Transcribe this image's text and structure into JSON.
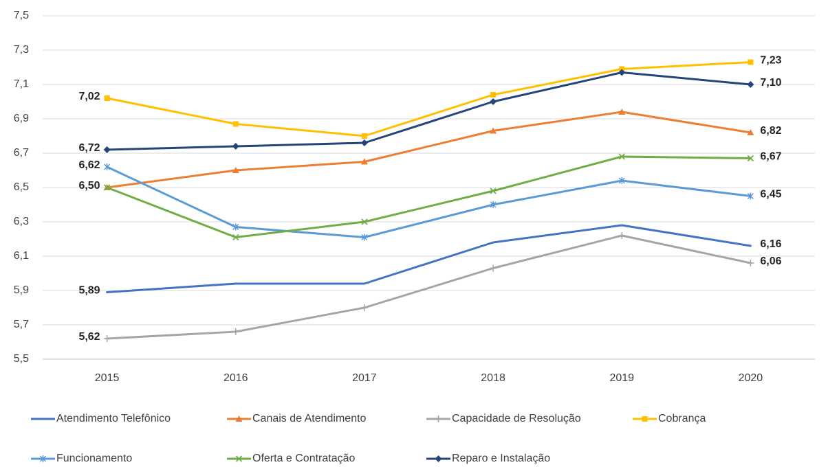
{
  "chart_data": {
    "type": "line",
    "categories": [
      "2015",
      "2016",
      "2017",
      "2018",
      "2019",
      "2020"
    ],
    "ylim": [
      5.5,
      7.5
    ],
    "yticks": [
      {
        "value": 5.5,
        "label": "5,5"
      },
      {
        "value": 5.7,
        "label": "5,7"
      },
      {
        "value": 5.9,
        "label": "5,9"
      },
      {
        "value": 6.1,
        "label": "6,1"
      },
      {
        "value": 6.3,
        "label": "6,3"
      },
      {
        "value": 6.5,
        "label": "6,5"
      },
      {
        "value": 6.7,
        "label": "6,7"
      },
      {
        "value": 6.9,
        "label": "6,9"
      },
      {
        "value": 7.1,
        "label": "7,1"
      },
      {
        "value": 7.3,
        "label": "7,3"
      },
      {
        "value": 7.5,
        "label": "7,5"
      }
    ],
    "grid": true,
    "legend": "bottom",
    "series": [
      {
        "name": "Atendimento Telefônico",
        "color": "#4472c4",
        "marker": "none",
        "values": [
          5.89,
          5.94,
          5.94,
          6.18,
          6.28,
          6.16
        ],
        "value_labels": [
          "5,89",
          null,
          null,
          null,
          null,
          "6,16"
        ]
      },
      {
        "name": "Canais de Atendimento",
        "color": "#ed7d31",
        "marker": "triangle",
        "values": [
          6.5,
          6.6,
          6.65,
          6.83,
          6.94,
          6.82
        ],
        "value_labels": [
          "6,50",
          null,
          null,
          null,
          null,
          "6,82"
        ]
      },
      {
        "name": "Capacidade de Resolução",
        "color": "#a5a5a5",
        "marker": "plus",
        "values": [
          5.62,
          5.66,
          5.8,
          6.03,
          6.22,
          6.06
        ],
        "value_labels": [
          "5,62",
          null,
          null,
          null,
          null,
          "6,06"
        ]
      },
      {
        "name": "Cobrança",
        "color": "#ffc000",
        "marker": "square",
        "values": [
          7.02,
          6.87,
          6.8,
          7.04,
          7.19,
          7.23
        ],
        "value_labels": [
          "7,02",
          null,
          null,
          null,
          null,
          "7,23"
        ]
      },
      {
        "name": "Funcionamento",
        "color": "#5b9bd5",
        "marker": "star",
        "values": [
          6.62,
          6.27,
          6.21,
          6.4,
          6.54,
          6.45
        ],
        "value_labels": [
          "6,62",
          null,
          null,
          null,
          null,
          "6,45"
        ]
      },
      {
        "name": "Oferta e Contratação",
        "color": "#70ad47",
        "marker": "x",
        "values": [
          6.5,
          6.21,
          6.3,
          6.48,
          6.68,
          6.67
        ],
        "value_labels": [
          null,
          null,
          null,
          null,
          null,
          "6,67"
        ]
      },
      {
        "name": "Reparo e Instalação",
        "color": "#264478",
        "marker": "diamond",
        "values": [
          6.72,
          6.74,
          6.76,
          7.0,
          7.17,
          7.1
        ],
        "value_labels": [
          "6,72",
          null,
          null,
          null,
          null,
          "7,10"
        ]
      }
    ]
  }
}
